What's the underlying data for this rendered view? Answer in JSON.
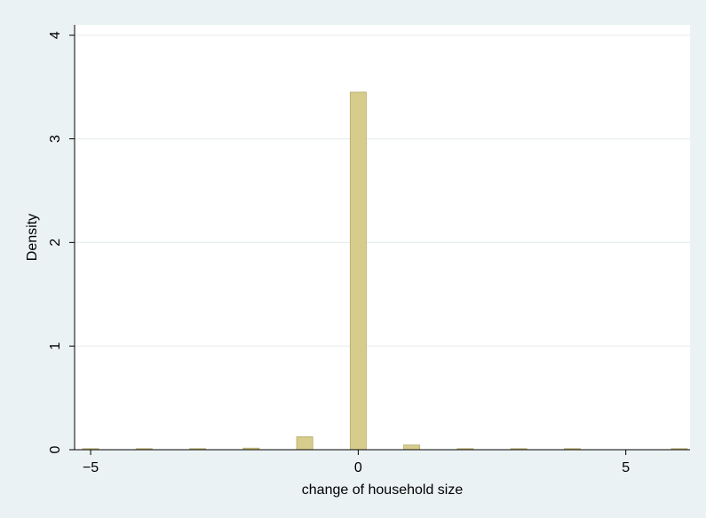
{
  "chart_data": {
    "type": "bar",
    "title": "",
    "xlabel": "change of household size",
    "ylabel": "Density",
    "xlim": [
      -5.3,
      6.2
    ],
    "ylim": [
      0,
      4.1
    ],
    "xticks": [
      -5,
      0,
      5
    ],
    "xtick_labels": [
      "−5",
      "0",
      "5"
    ],
    "yticks": [
      0,
      1,
      2,
      3,
      4
    ],
    "ytick_labels": [
      "0",
      "1",
      "2",
      "3",
      "4"
    ],
    "grid": true,
    "bar_width": 0.3,
    "series": [
      {
        "x": [
          -5,
          -4,
          -3,
          -2,
          -1,
          0,
          1,
          2,
          3,
          4,
          6
        ],
        "values": [
          0.004,
          0.004,
          0.004,
          0.015,
          0.125,
          3.45,
          0.045,
          0.006,
          0.004,
          0.004,
          0.004
        ]
      }
    ],
    "colors": {
      "background": "#eaf2f3",
      "plot_area": "#ffffff",
      "bar_fill": "#d6cc8c",
      "bar_edge": "#b5a866",
      "grid": "#e8eef0",
      "axis": "#000000"
    }
  }
}
